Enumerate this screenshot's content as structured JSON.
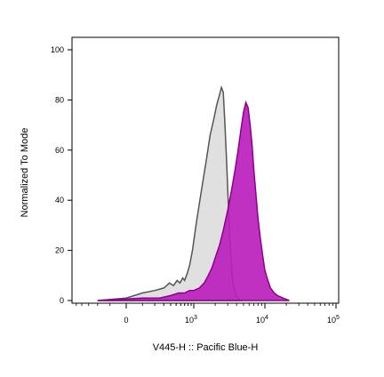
{
  "chart_data": {
    "type": "area",
    "title": "",
    "xlabel": "V445-H :: Pacific Blue-H",
    "ylabel": "Normalized To Mode",
    "x_scale": "biexponential",
    "xlim": [
      -1000,
      130000
    ],
    "ylim": [
      0,
      105
    ],
    "y_ticks": [
      0,
      20,
      40,
      60,
      80,
      100
    ],
    "x_ticks": [
      {
        "value": 0,
        "base": "0",
        "exp": ""
      },
      {
        "value": 1000,
        "base": "10",
        "exp": "3"
      },
      {
        "value": 10000,
        "base": "10",
        "exp": "4"
      },
      {
        "value": 100000,
        "base": "10",
        "exp": "5"
      }
    ],
    "grid": false,
    "series": [
      {
        "color": "#555555",
        "fill": "#e0e0e0",
        "x": [
          -200,
          0,
          100,
          200,
          300,
          380,
          450,
          520,
          580,
          650,
          700,
          780,
          850,
          950,
          1100,
          1300,
          1500,
          1700,
          1900,
          2100,
          2300,
          2450,
          2600,
          2750,
          2900,
          3050,
          3200,
          3400,
          3600,
          3800,
          4100,
          4500
        ],
        "y": [
          0,
          1,
          3,
          4,
          5,
          7,
          6,
          8,
          7,
          9,
          8,
          11,
          14,
          20,
          32,
          45,
          56,
          66,
          72,
          78,
          82,
          85,
          83,
          70,
          55,
          40,
          25,
          13,
          6,
          3,
          1,
          0
        ]
      },
      {
        "color": "#8b008b",
        "fill": "#bc1fbc",
        "x": [
          -200,
          100,
          250,
          400,
          550,
          700,
          850,
          1000,
          1200,
          1400,
          1600,
          1800,
          2000,
          2300,
          2600,
          3000,
          3400,
          3800,
          4200,
          4600,
          5000,
          5400,
          5800,
          6200,
          6600,
          7000,
          7500,
          8000,
          8600,
          9300,
          10000,
          11000,
          12000,
          13500,
          15000,
          18000,
          22000
        ],
        "y": [
          0,
          1,
          1,
          2,
          3,
          3,
          4,
          4,
          5,
          7,
          10,
          13,
          17,
          22,
          28,
          36,
          44,
          52,
          60,
          68,
          75,
          79,
          77,
          70,
          62,
          52,
          42,
          33,
          25,
          18,
          12,
          8,
          5,
          3,
          2,
          1,
          0
        ]
      }
    ]
  }
}
